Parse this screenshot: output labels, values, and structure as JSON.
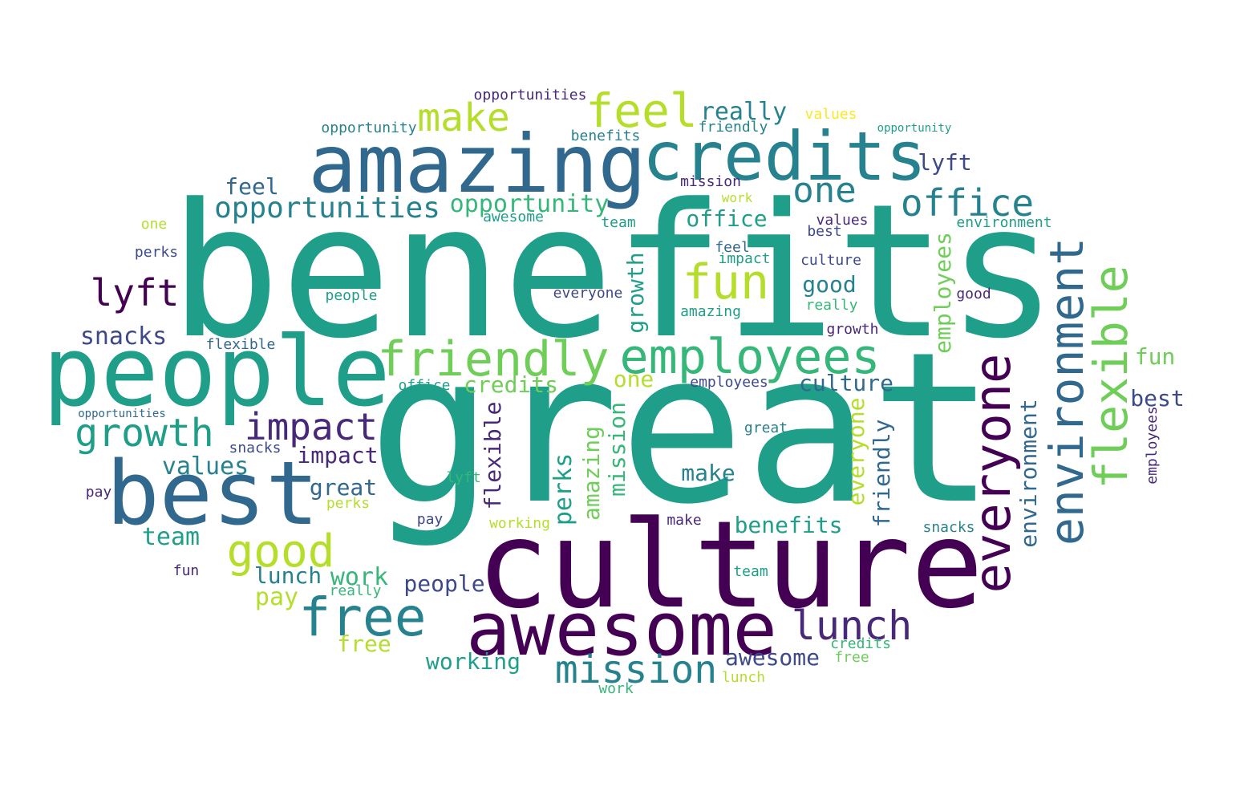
{
  "palette": {
    "dark_purple": "#440154",
    "purple": "#482878",
    "indigo": "#3e4989",
    "blue": "#31688e",
    "teal_blue": "#26828e",
    "teal": "#1f9e89",
    "green": "#35b779",
    "light_green": "#6ece58",
    "lime": "#b5de2b",
    "yellow": "#fde725"
  },
  "words": {
    "w1": "benefits",
    "w2": "great",
    "w3": "culture",
    "w4": "people",
    "w5": "amazing",
    "w6": "credits",
    "w7": "awesome",
    "w8": "best",
    "w9": "employees",
    "w10": "friendly",
    "w11": "everyone",
    "w12": "environment",
    "w13": "flexible",
    "w14": "free",
    "w15": "feel",
    "w16": "fun",
    "w17": "mission",
    "w18": "growth",
    "w19": "good",
    "w20": "impact",
    "w21": "lunch",
    "w22": "make",
    "w23": "office",
    "w24": "opportunities",
    "w25": "one",
    "w26": "lyft",
    "w27": "opportunity",
    "w28": "really",
    "w29": "snacks",
    "w30": "values",
    "w31": "team",
    "w32": "pay",
    "w33": "work",
    "w34": "working",
    "w35": "perks",
    "w36": "office",
    "w37": "culture",
    "w38": "benefits",
    "w39": "people",
    "w40": "impact",
    "w41": "lunch",
    "w42": "awesome",
    "w43": "opportunity",
    "w44": "employees",
    "w45": "credits",
    "w46": "one",
    "w47": "good",
    "w48": "make",
    "w49": "friendly",
    "w50": "feel",
    "w51": "lyft",
    "w52": "growth",
    "w53": "mission",
    "w54": "amazing",
    "w55": "perks",
    "w56": "everyone",
    "w57": "environment",
    "w58": "flexible",
    "w59": "free",
    "w60": "fun",
    "w61": "best",
    "w62": "work",
    "w63": "opportunities",
    "w64": "great",
    "w65": "really",
    "w66": "values",
    "w67": "snacks",
    "w68": "team",
    "w69": "pay",
    "w70": "working",
    "w71": "employees",
    "w72": "opportunity",
    "w73": "culture",
    "w74": "environment",
    "w75": "snacks",
    "w76": "values",
    "w77": "flexible",
    "w78": "feel",
    "w79": "everyone",
    "w80": "friendly",
    "w81": "growth",
    "w82": "one",
    "w83": "team",
    "w84": "amazing",
    "w85": "impact",
    "w86": "really",
    "w87": "good",
    "w88": "office",
    "w89": "mission",
    "w90": "best",
    "w91": "great",
    "w92": "make",
    "w93": "work",
    "w94": "lunch",
    "w95": "pay",
    "w96": "perks",
    "w97": "people",
    "w98": "credits",
    "w99": "awesome",
    "w100": "lyft",
    "w101": "benefits",
    "w102": "employees",
    "w103": "opportunities",
    "w104": "fun",
    "w105": "free"
  }
}
